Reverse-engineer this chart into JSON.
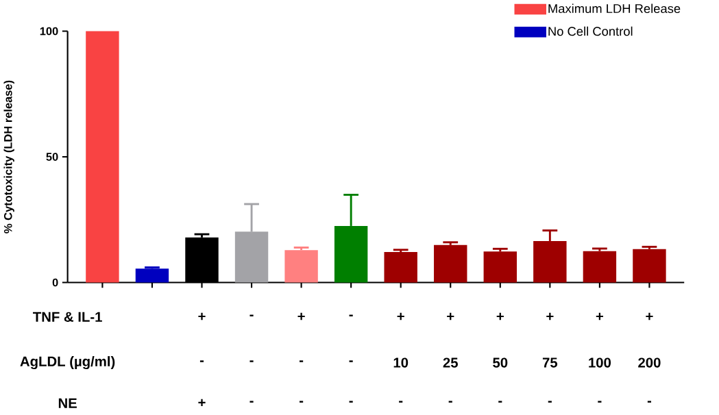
{
  "chart_data": {
    "type": "bar",
    "ylabel": "% Cytotoxicity (LDH release)",
    "categories": [
      null,
      null,
      null,
      null,
      null,
      null,
      null,
      null,
      null,
      null,
      null,
      null
    ],
    "series": [
      {
        "name": "Maximum LDH Release",
        "color": "#f94343",
        "values": [
          100,
          null,
          null,
          null,
          null,
          null,
          null,
          null,
          null,
          null,
          null,
          null
        ]
      },
      {
        "name": "No Cell Control",
        "color": "#0000bf",
        "values": [
          null,
          5.5,
          null,
          null,
          null,
          null,
          null,
          null,
          null,
          null,
          null,
          null
        ],
        "errors": [
          null,
          [
            5.5,
            6.0
          ],
          null,
          null,
          null,
          null,
          null,
          null,
          null,
          null,
          null,
          null
        ]
      },
      {
        "colors": [
          "#000000",
          "#000000",
          "#000000",
          "#a3a3a7",
          "#ff8080",
          "#007f00",
          "#9e0000",
          "#9e0000",
          "#9e0000",
          "#9e0000",
          "#9e0000",
          "#9e0000"
        ],
        "values": [
          null,
          null,
          17.9,
          20.2,
          12.9,
          22.5,
          12.1,
          14.9,
          12.3,
          16.5,
          12.5,
          13.3
        ],
        "errors": [
          null,
          null,
          [
            17.9,
            19.2
          ],
          [
            20.2,
            31.2
          ],
          [
            12.9,
            13.9
          ],
          [
            22.5,
            34.9
          ],
          [
            12.1,
            13.0
          ],
          [
            14.9,
            16.0
          ],
          [
            12.3,
            13.4
          ],
          [
            16.5,
            20.7
          ],
          [
            12.5,
            13.5
          ],
          [
            13.3,
            14.2
          ]
        ]
      }
    ],
    "ylim": [
      0,
      100
    ],
    "yticks": [
      0,
      50,
      100
    ],
    "legend": "top right",
    "grid": false,
    "annotations": [
      "TNF & IL-1",
      "+",
      "-",
      "+",
      "-",
      "+",
      "+",
      "+",
      "+",
      "+",
      "+",
      "AgLDL (µg/ml)",
      "-",
      "-",
      "-",
      "-",
      "10",
      "25",
      "50",
      "75",
      "100",
      "200",
      "NE",
      "+",
      "-",
      "-",
      "-",
      "-",
      "-",
      "-",
      "-",
      "-",
      "-"
    ]
  }
}
